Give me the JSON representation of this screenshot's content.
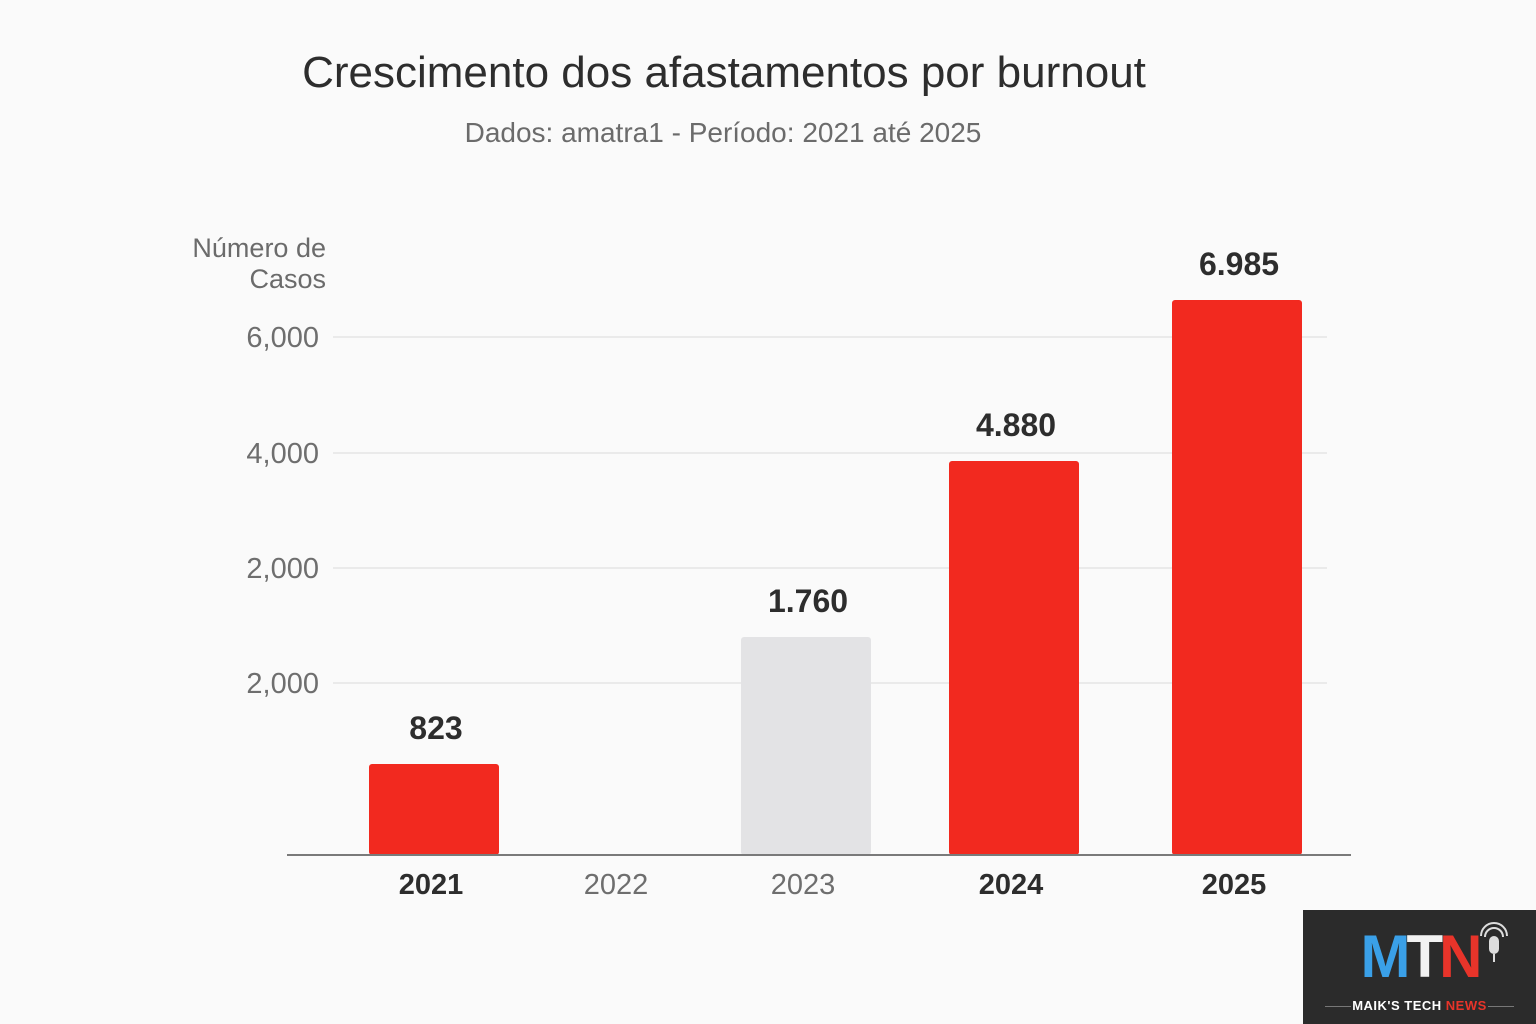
{
  "chart_data": {
    "type": "bar",
    "title": "Crescimento dos afastamentos por burnout",
    "subtitle": "Dados: amatra1 - Período: 2021 até 2025",
    "ylabel": "Número de Casos",
    "categories": [
      "2021",
      "2022",
      "2023",
      "2024",
      "2025"
    ],
    "values": [
      823,
      null,
      1760,
      4880,
      6985
    ],
    "value_labels": [
      "823",
      "",
      "1.760",
      "4.880",
      "6.985"
    ],
    "bar_colors": [
      "#f2291f",
      null,
      "#e3e3e5",
      "#f2291f",
      "#f2291f"
    ],
    "category_emphasis": [
      true,
      false,
      false,
      true,
      true
    ],
    "y_tick_labels": [
      "2,000",
      "2,000",
      "4,000",
      "6,000"
    ],
    "grid": true,
    "legend": "none"
  },
  "colors": {
    "accent": "#f2291f",
    "muted_bar": "#e3e3e5",
    "title": "#2d2d2d",
    "axis_text": "#6e6e6e"
  },
  "logo": {
    "letters": [
      "M",
      "T",
      "N"
    ],
    "tagline_main": "MAIK'S TECH ",
    "tagline_accent": "NEWS",
    "icon": "microphone-icon"
  }
}
